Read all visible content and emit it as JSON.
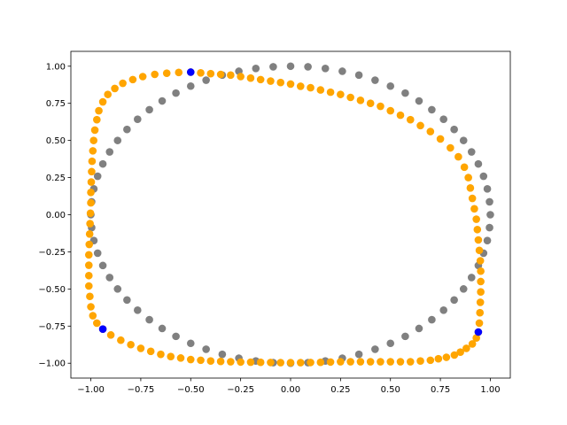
{
  "chart_data": {
    "type": "scatter",
    "title": "",
    "xlabel": "",
    "ylabel": "",
    "xlim": [
      -1.1,
      1.1
    ],
    "ylim": [
      -1.1,
      1.1
    ],
    "grid": false,
    "legend": "none",
    "x_ticks": [
      {
        "value": -1.0,
        "label": "−1.00"
      },
      {
        "value": -0.75,
        "label": "−0.75"
      },
      {
        "value": -0.5,
        "label": "−0.50"
      },
      {
        "value": -0.25,
        "label": "−0.25"
      },
      {
        "value": 0.0,
        "label": "0.00"
      },
      {
        "value": 0.25,
        "label": "0.25"
      },
      {
        "value": 0.5,
        "label": "0.50"
      },
      {
        "value": 0.75,
        "label": "0.75"
      },
      {
        "value": 1.0,
        "label": "1.00"
      }
    ],
    "y_ticks": [
      {
        "value": -1.0,
        "label": "−1.00"
      },
      {
        "value": -0.75,
        "label": "−0.75"
      },
      {
        "value": -0.5,
        "label": "−0.50"
      },
      {
        "value": -0.25,
        "label": "−0.25"
      },
      {
        "value": 0.0,
        "label": "0.00"
      },
      {
        "value": 0.25,
        "label": "0.25"
      },
      {
        "value": 0.5,
        "label": "0.50"
      },
      {
        "value": 0.75,
        "label": "0.75"
      },
      {
        "value": 1.0,
        "label": "1.00"
      }
    ],
    "series": [
      {
        "color": "#808080",
        "description": "unit circle, 72 evenly spaced points",
        "points": [
          [
            1.0,
            0.0
          ],
          [
            0.996,
            0.087
          ],
          [
            0.985,
            0.174
          ],
          [
            0.966,
            0.259
          ],
          [
            0.94,
            0.342
          ],
          [
            0.906,
            0.423
          ],
          [
            0.866,
            0.5
          ],
          [
            0.819,
            0.574
          ],
          [
            0.766,
            0.643
          ],
          [
            0.707,
            0.707
          ],
          [
            0.643,
            0.766
          ],
          [
            0.574,
            0.819
          ],
          [
            0.5,
            0.866
          ],
          [
            0.423,
            0.906
          ],
          [
            0.342,
            0.94
          ],
          [
            0.259,
            0.966
          ],
          [
            0.174,
            0.985
          ],
          [
            0.087,
            0.996
          ],
          [
            0.0,
            1.0
          ],
          [
            -0.087,
            0.996
          ],
          [
            -0.174,
            0.985
          ],
          [
            -0.259,
            0.966
          ],
          [
            -0.342,
            0.94
          ],
          [
            -0.423,
            0.906
          ],
          [
            -0.5,
            0.866
          ],
          [
            -0.574,
            0.819
          ],
          [
            -0.643,
            0.766
          ],
          [
            -0.707,
            0.707
          ],
          [
            -0.766,
            0.643
          ],
          [
            -0.819,
            0.574
          ],
          [
            -0.866,
            0.5
          ],
          [
            -0.906,
            0.423
          ],
          [
            -0.94,
            0.342
          ],
          [
            -0.966,
            0.259
          ],
          [
            -0.985,
            0.174
          ],
          [
            -0.996,
            0.087
          ],
          [
            -1.0,
            0.0
          ],
          [
            -0.996,
            -0.087
          ],
          [
            -0.985,
            -0.174
          ],
          [
            -0.966,
            -0.259
          ],
          [
            -0.94,
            -0.342
          ],
          [
            -0.906,
            -0.423
          ],
          [
            -0.866,
            -0.5
          ],
          [
            -0.819,
            -0.574
          ],
          [
            -0.766,
            -0.643
          ],
          [
            -0.707,
            -0.707
          ],
          [
            -0.643,
            -0.766
          ],
          [
            -0.574,
            -0.819
          ],
          [
            -0.5,
            -0.866
          ],
          [
            -0.423,
            -0.906
          ],
          [
            -0.342,
            -0.94
          ],
          [
            -0.259,
            -0.966
          ],
          [
            -0.174,
            -0.985
          ],
          [
            -0.087,
            -0.996
          ],
          [
            0.0,
            -1.0
          ],
          [
            0.087,
            -0.996
          ],
          [
            0.174,
            -0.985
          ],
          [
            0.259,
            -0.966
          ],
          [
            0.342,
            -0.94
          ],
          [
            0.423,
            -0.906
          ],
          [
            0.5,
            -0.866
          ],
          [
            0.574,
            -0.819
          ],
          [
            0.643,
            -0.766
          ],
          [
            0.707,
            -0.707
          ],
          [
            0.766,
            -0.643
          ],
          [
            0.819,
            -0.574
          ],
          [
            0.866,
            -0.5
          ],
          [
            0.906,
            -0.423
          ],
          [
            0.94,
            -0.342
          ],
          [
            0.966,
            -0.259
          ],
          [
            0.985,
            -0.174
          ],
          [
            0.996,
            -0.087
          ]
        ]
      },
      {
        "color": "#ffa500",
        "description": "deformed closed curve through the blue control points",
        "points": [
          [
            -0.5,
            0.96
          ],
          [
            -0.45,
            0.955
          ],
          [
            -0.4,
            0.95
          ],
          [
            -0.35,
            0.945
          ],
          [
            -0.3,
            0.94
          ],
          [
            -0.25,
            0.93
          ],
          [
            -0.2,
            0.92
          ],
          [
            -0.15,
            0.91
          ],
          [
            -0.1,
            0.9
          ],
          [
            -0.05,
            0.89
          ],
          [
            0.0,
            0.88
          ],
          [
            0.05,
            0.865
          ],
          [
            0.1,
            0.855
          ],
          [
            0.15,
            0.84
          ],
          [
            0.2,
            0.825
          ],
          [
            0.25,
            0.81
          ],
          [
            0.3,
            0.79
          ],
          [
            0.35,
            0.77
          ],
          [
            0.4,
            0.75
          ],
          [
            0.45,
            0.73
          ],
          [
            0.5,
            0.7
          ],
          [
            0.55,
            0.67
          ],
          [
            0.6,
            0.64
          ],
          [
            0.65,
            0.6
          ],
          [
            0.7,
            0.56
          ],
          [
            0.75,
            0.51
          ],
          [
            0.8,
            0.45
          ],
          [
            0.84,
            0.39
          ],
          [
            0.87,
            0.32
          ],
          [
            0.89,
            0.25
          ],
          [
            0.9,
            0.18
          ],
          [
            0.91,
            0.11
          ],
          [
            0.92,
            0.04
          ],
          [
            0.93,
            -0.03
          ],
          [
            0.935,
            -0.1
          ],
          [
            0.94,
            -0.17
          ],
          [
            0.945,
            -0.24
          ],
          [
            0.95,
            -0.31
          ],
          [
            0.952,
            -0.38
          ],
          [
            0.952,
            -0.45
          ],
          [
            0.952,
            -0.52
          ],
          [
            0.95,
            -0.59
          ],
          [
            0.948,
            -0.66
          ],
          [
            0.945,
            -0.73
          ],
          [
            0.94,
            -0.79
          ],
          [
            0.93,
            -0.83
          ],
          [
            0.91,
            -0.87
          ],
          [
            0.88,
            -0.9
          ],
          [
            0.85,
            -0.925
          ],
          [
            0.82,
            -0.945
          ],
          [
            0.78,
            -0.96
          ],
          [
            0.74,
            -0.97
          ],
          [
            0.7,
            -0.98
          ],
          [
            0.65,
            -0.985
          ],
          [
            0.6,
            -0.99
          ],
          [
            0.55,
            -0.99
          ],
          [
            0.5,
            -0.99
          ],
          [
            0.45,
            -0.99
          ],
          [
            0.4,
            -0.99
          ],
          [
            0.35,
            -0.99
          ],
          [
            0.3,
            -0.99
          ],
          [
            0.25,
            -0.99
          ],
          [
            0.2,
            -0.992
          ],
          [
            0.15,
            -0.994
          ],
          [
            0.1,
            -0.995
          ],
          [
            0.05,
            -0.996
          ],
          [
            0.0,
            -0.996
          ],
          [
            -0.05,
            -0.996
          ],
          [
            -0.1,
            -0.995
          ],
          [
            -0.15,
            -0.994
          ],
          [
            -0.2,
            -0.993
          ],
          [
            -0.25,
            -0.992
          ],
          [
            -0.3,
            -0.99
          ],
          [
            -0.35,
            -0.988
          ],
          [
            -0.4,
            -0.985
          ],
          [
            -0.45,
            -0.98
          ],
          [
            -0.5,
            -0.975
          ],
          [
            -0.55,
            -0.965
          ],
          [
            -0.6,
            -0.955
          ],
          [
            -0.65,
            -0.94
          ],
          [
            -0.7,
            -0.92
          ],
          [
            -0.75,
            -0.9
          ],
          [
            -0.8,
            -0.875
          ],
          [
            -0.85,
            -0.845
          ],
          [
            -0.9,
            -0.81
          ],
          [
            -0.94,
            -0.77
          ],
          [
            -0.97,
            -0.73
          ],
          [
            -0.99,
            -0.68
          ],
          [
            -1.0,
            -0.62
          ],
          [
            -1.005,
            -0.55
          ],
          [
            -1.01,
            -0.48
          ],
          [
            -1.01,
            -0.41
          ],
          [
            -1.01,
            -0.34
          ],
          [
            -1.01,
            -0.27
          ],
          [
            -1.008,
            -0.2
          ],
          [
            -1.006,
            -0.13
          ],
          [
            -1.004,
            -0.06
          ],
          [
            -1.002,
            0.01
          ],
          [
            -1.0,
            0.08
          ],
          [
            -1.0,
            0.15
          ],
          [
            -0.998,
            0.22
          ],
          [
            -0.996,
            0.29
          ],
          [
            -0.994,
            0.36
          ],
          [
            -0.99,
            0.43
          ],
          [
            -0.986,
            0.5
          ],
          [
            -0.98,
            0.57
          ],
          [
            -0.97,
            0.64
          ],
          [
            -0.96,
            0.7
          ],
          [
            -0.94,
            0.76
          ],
          [
            -0.915,
            0.81
          ],
          [
            -0.88,
            0.85
          ],
          [
            -0.84,
            0.885
          ],
          [
            -0.79,
            0.91
          ],
          [
            -0.74,
            0.93
          ],
          [
            -0.68,
            0.945
          ],
          [
            -0.62,
            0.953
          ],
          [
            -0.56,
            0.958
          ]
        ]
      },
      {
        "color": "#0000ff",
        "description": "control points",
        "points": [
          [
            -0.5,
            0.96
          ],
          [
            -0.94,
            -0.77
          ],
          [
            0.94,
            -0.79
          ]
        ]
      }
    ]
  }
}
